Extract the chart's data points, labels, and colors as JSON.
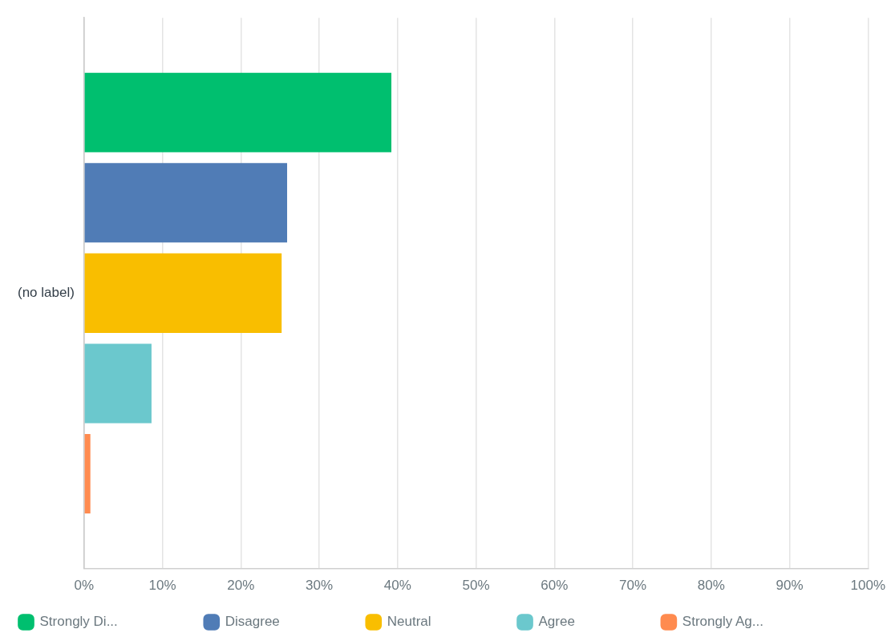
{
  "chart_data": {
    "type": "bar",
    "orientation": "horizontal",
    "categories": [
      "(no label)"
    ],
    "series": [
      {
        "name": "Strongly Di...",
        "color": "#00bf6f",
        "values": [
          39.2
        ]
      },
      {
        "name": "Disagree",
        "color": "#507cb6",
        "values": [
          25.9
        ]
      },
      {
        "name": "Neutral",
        "color": "#f9be00",
        "values": [
          25.2
        ]
      },
      {
        "name": "Agree",
        "color": "#6bc8cd",
        "values": [
          8.6
        ]
      },
      {
        "name": "Strongly Ag...",
        "color": "#ff8b4f",
        "values": [
          0.8
        ]
      }
    ],
    "xlim": [
      0,
      100
    ],
    "xticks": [
      {
        "value": 0,
        "label": "0%"
      },
      {
        "value": 10,
        "label": "10%"
      },
      {
        "value": 20,
        "label": "20%"
      },
      {
        "value": 30,
        "label": "30%"
      },
      {
        "value": 40,
        "label": "40%"
      },
      {
        "value": 50,
        "label": "50%"
      },
      {
        "value": 60,
        "label": "60%"
      },
      {
        "value": 70,
        "label": "70%"
      },
      {
        "value": 80,
        "label": "80%"
      },
      {
        "value": 90,
        "label": "90%"
      },
      {
        "value": 100,
        "label": "100%"
      }
    ],
    "grid": "x",
    "legend": "bottom left"
  }
}
